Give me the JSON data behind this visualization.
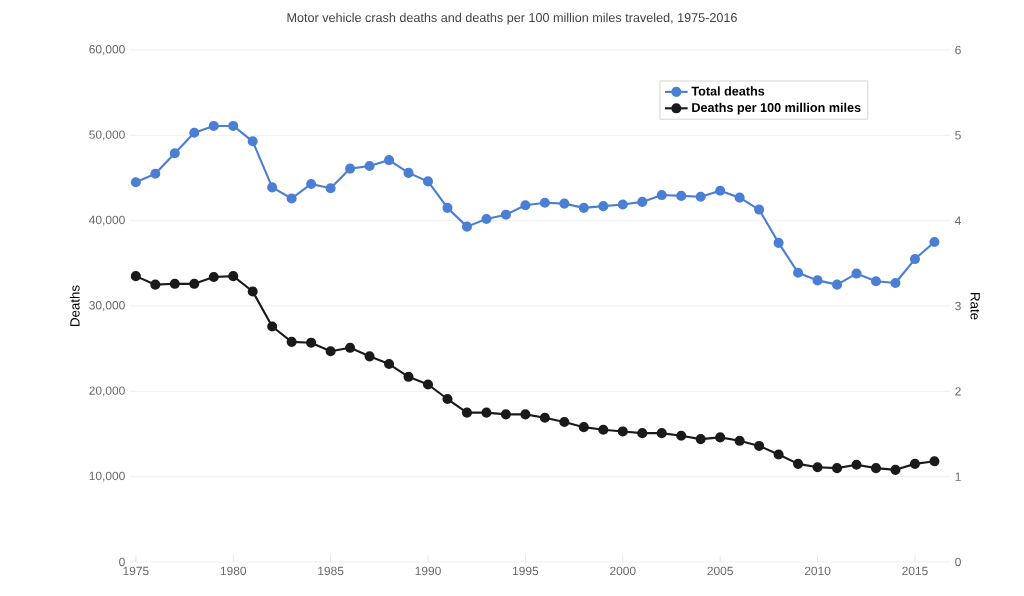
{
  "chart_data": {
    "type": "line",
    "title": "Motor vehicle crash deaths and deaths per 100 million miles traveled, 1975-2016",
    "ylabel": "Deaths",
    "y2label": "Rate",
    "x": [
      1975,
      1976,
      1977,
      1978,
      1979,
      1980,
      1981,
      1982,
      1983,
      1984,
      1985,
      1986,
      1987,
      1988,
      1989,
      1990,
      1991,
      1992,
      1993,
      1994,
      1995,
      1996,
      1997,
      1998,
      1999,
      2000,
      2001,
      2002,
      2003,
      2004,
      2005,
      2006,
      2007,
      2008,
      2009,
      2010,
      2011,
      2012,
      2013,
      2014,
      2015,
      2016
    ],
    "series": [
      {
        "name": "Total deaths",
        "color": "#4a7fd4",
        "values": [
          44500,
          45500,
          47900,
          50300,
          51100,
          51100,
          49300,
          43900,
          42600,
          44300,
          43800,
          46100,
          46400,
          47100,
          45600,
          44600,
          41500,
          39300,
          40200,
          40700,
          41800,
          42100,
          42000,
          41500,
          41700,
          41900,
          42200,
          43000,
          42900,
          42800,
          43500,
          42700,
          41300,
          37400,
          33900,
          33000,
          32500,
          33800,
          32900,
          32700,
          35500,
          37500
        ]
      },
      {
        "name": "Deaths per 100 million miles",
        "color": "#1a1a1a",
        "axis": "y2",
        "values": [
          3.35,
          3.25,
          3.26,
          3.26,
          3.34,
          3.35,
          3.17,
          2.76,
          2.58,
          2.57,
          2.47,
          2.51,
          2.41,
          2.32,
          2.17,
          2.08,
          1.91,
          1.75,
          1.75,
          1.73,
          1.73,
          1.69,
          1.64,
          1.58,
          1.55,
          1.53,
          1.51,
          1.51,
          1.48,
          1.44,
          1.46,
          1.42,
          1.36,
          1.26,
          1.15,
          1.11,
          1.1,
          1.14,
          1.1,
          1.08,
          1.15,
          1.18
        ]
      }
    ],
    "xlim": [
      1974.7,
      2016.8
    ],
    "xticks": [
      1975,
      1980,
      1985,
      1990,
      1995,
      2000,
      2005,
      2010,
      2015
    ],
    "ylim": [
      0,
      60000
    ],
    "yticks": [
      {
        "value": 0,
        "label": "0"
      },
      {
        "value": 10000,
        "label": "10,000"
      },
      {
        "value": 20000,
        "label": "20,000"
      },
      {
        "value": 30000,
        "label": "30,000"
      },
      {
        "value": 40000,
        "label": "40,000"
      },
      {
        "value": 50000,
        "label": "50,000"
      },
      {
        "value": 60000,
        "label": "60,000"
      }
    ],
    "y2lim": [
      0,
      6
    ],
    "y2ticks": [
      0,
      1,
      2,
      3,
      4,
      5,
      6
    ],
    "grid": "y",
    "legend": "top right",
    "marker": "circle",
    "line_style": "solid"
  }
}
